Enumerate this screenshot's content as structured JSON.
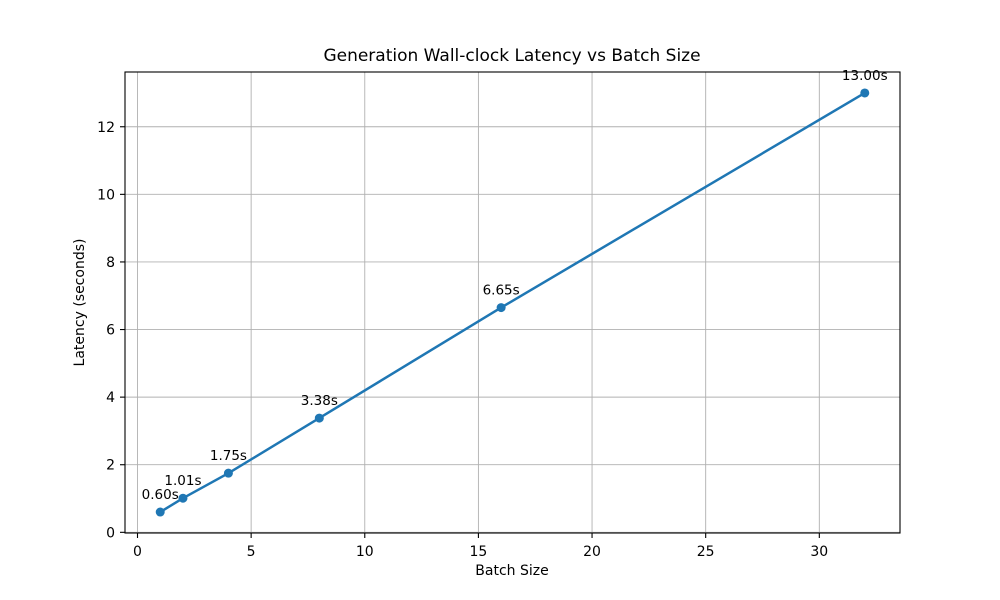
{
  "chart_data": {
    "type": "line",
    "title": "Generation Wall-clock Latency vs Batch Size",
    "xlabel": "Batch Size",
    "ylabel": "Latency (seconds)",
    "x": [
      1,
      2,
      4,
      8,
      16,
      32
    ],
    "y": [
      0.6,
      1.01,
      1.75,
      3.38,
      6.65,
      13.0
    ],
    "point_labels": [
      "0.60s",
      "1.01s",
      "1.75s",
      "3.38s",
      "6.65s",
      "13.00s"
    ],
    "xticks": [
      0,
      5,
      10,
      15,
      20,
      25,
      30
    ],
    "yticks": [
      0,
      2,
      4,
      6,
      8,
      10,
      12
    ],
    "xlim": [
      -0.55,
      33.55
    ],
    "ylim": [
      -0.02,
      13.62
    ],
    "grid": true,
    "legend_position": "none",
    "line_color": "#1f77b4",
    "marker_color": "#1f77b4",
    "grid_color": "#b0b0b0",
    "spine_color": "#000000",
    "text_color": "#000000",
    "background_color": "#ffffff"
  }
}
